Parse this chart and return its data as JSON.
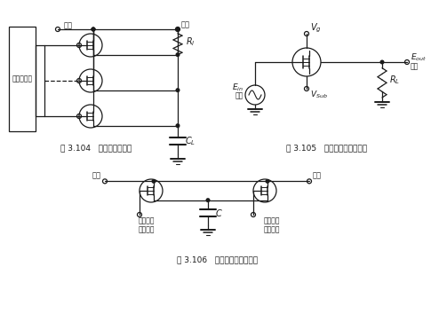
{
  "bg_color": "#ffffff",
  "lc": "#1a1a1a",
  "lw": 0.9,
  "fig_w": 4.94,
  "fig_h": 3.63,
  "dpi": 100,
  "caption1": "图 3.104   多路调制器开关",
  "caption2": "图 3.105   模拟开关的基本电路",
  "caption3": "图 3.106   模拟存储器基本电路",
  "box_label": "环形计数器",
  "in_label": "输入",
  "out_label": "输出",
  "shiftreg_label": "用移位寄\n存器通断",
  "rl_label": "$R_l$",
  "rl2_label": "$R_L$",
  "cl_label": "$C_L$",
  "c_label": "$C$",
  "vg_label": "$V_g$",
  "vsub_label": "$V_{Sub}$",
  "ein_label": "$E_{in}$",
  "eout_label": "$E_{out}$"
}
